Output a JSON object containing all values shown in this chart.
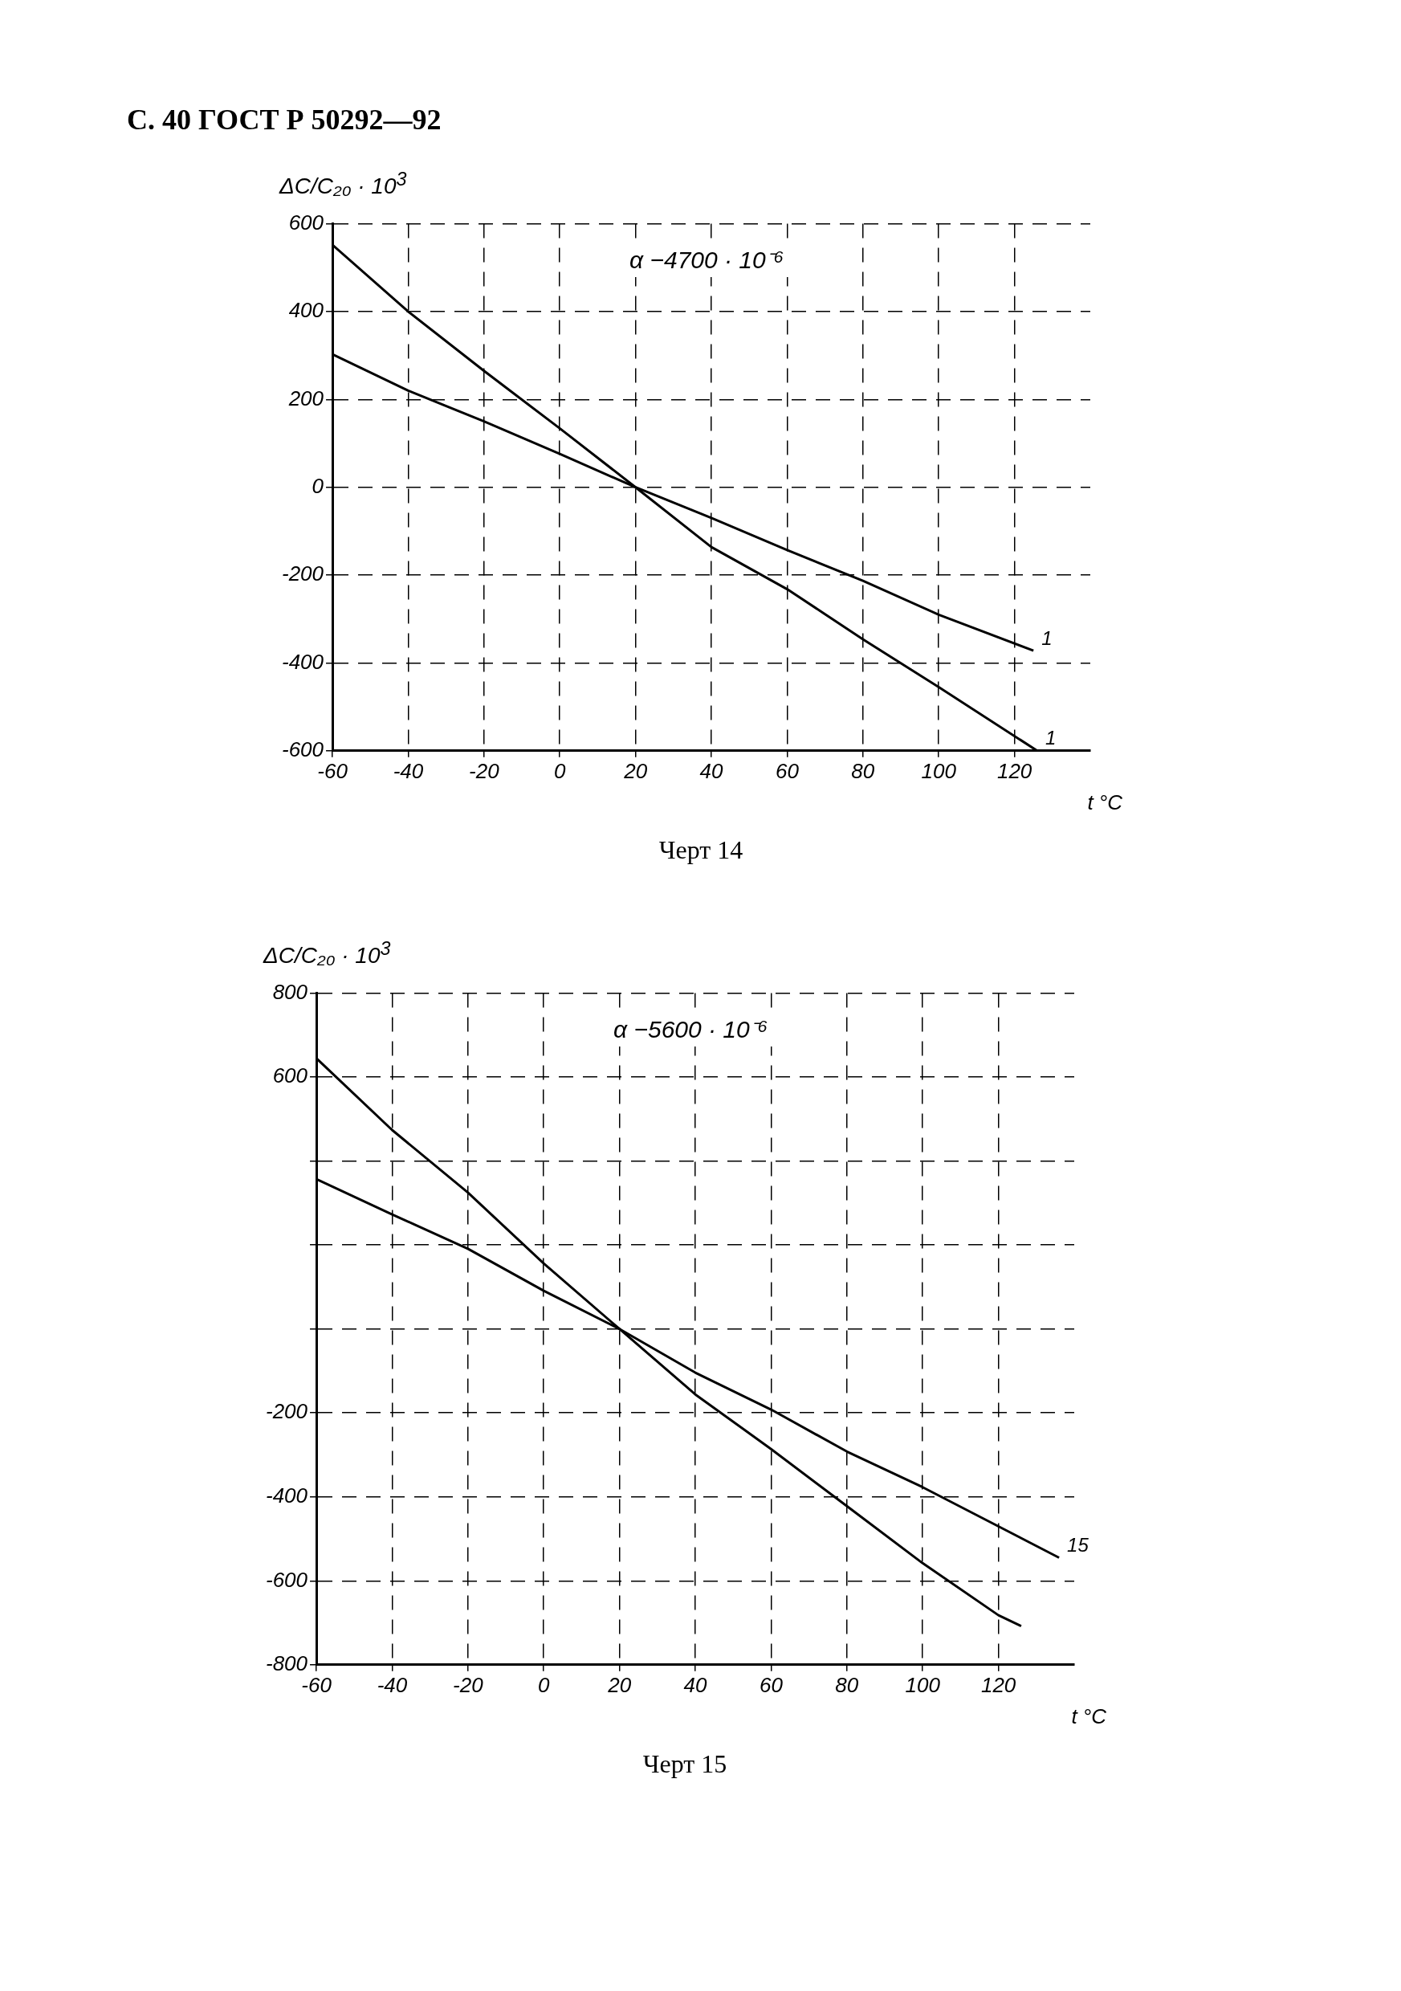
{
  "chart_data": [
    {
      "type": "line",
      "title": "С. 40 ГОСТ Р 50292—92",
      "ylabel": "ΔC/C₂₀ · 10$^{3}$",
      "xlabel": "t °C",
      "annotations": [
        "α −4700 · 10⁻⁶",
        "Черт 14"
      ],
      "xlim": [
        -60,
        140
      ],
      "xticks": [
        -60,
        -40,
        -20,
        0,
        20,
        40,
        60,
        80,
        100,
        120
      ],
      "ylim": [
        -600,
        600
      ],
      "yticks": [
        -600,
        -400,
        -200,
        0,
        200,
        400,
        600
      ],
      "grid": true,
      "marker": "none",
      "line_style": "solid",
      "series": [
        {
          "name": "1",
          "color": "#000000",
          "x": [
            -60,
            -40,
            -20,
            0,
            20,
            40,
            60,
            80,
            100,
            126
          ],
          "values": [
            552,
            400,
            265,
            134,
            0,
            -136,
            -232,
            -346,
            -455,
            -600
          ]
        },
        {
          "name": "1",
          "color": "#000000",
          "x": [
            -60,
            -40,
            -20,
            0,
            20,
            40,
            60,
            80,
            100,
            125
          ],
          "values": [
            303,
            220,
            150,
            76,
            0,
            -70,
            -143,
            -213,
            -290,
            -372
          ]
        }
      ]
    },
    {
      "type": "line",
      "ylabel": "ΔC/C₂₀ · 10$^{3}$",
      "xlabel": "t °C",
      "annotations": [
        "α −5600 · 10⁻⁶",
        "Черт 15"
      ],
      "xlim": [
        -60,
        140
      ],
      "xticks": [
        -60,
        -40,
        -20,
        0,
        20,
        40,
        60,
        80,
        100,
        120
      ],
      "ylim": [
        -800,
        800
      ],
      "yticks": [
        -800,
        -600,
        -400,
        -200,
        {
          "value": 0,
          "label": null
        },
        {
          "value": 200,
          "label": null
        },
        {
          "value": 400,
          "label": null
        },
        600,
        800
      ],
      "grid": true,
      "marker": "none",
      "line_style": "solid",
      "series": [
        {
          "color": "#000000",
          "x": [
            -60,
            -40,
            -20,
            0,
            20,
            40,
            60,
            80,
            100,
            120,
            126
          ],
          "values": [
            645,
            474,
            325,
            156,
            0,
            -156,
            -286,
            -422,
            -558,
            -682,
            -708
          ]
        },
        {
          "name": "15",
          "color": "#000000",
          "x": [
            -60,
            -40,
            -20,
            0,
            20,
            40,
            60,
            80,
            100,
            136
          ],
          "values": [
            357,
            273,
            191,
            91,
            0,
            -104,
            -192,
            -292,
            -377,
            -545
          ]
        }
      ]
    }
  ]
}
